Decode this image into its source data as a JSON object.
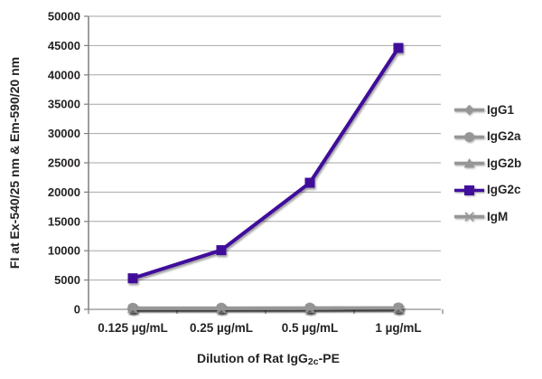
{
  "chart_data": {
    "type": "line",
    "title": "",
    "xlabel": "Dilution of Rat IgG2c-PE",
    "xlabel_parts": {
      "prefix": "Dilution of Rat IgG",
      "subscript": "2c",
      "suffix": "-PE"
    },
    "ylabel": "FI at Ex-540/25 nm & Em-590/20 nm",
    "categories": [
      "0.125 µg/mL",
      "0.25 µg/mL",
      "0.5 µg/mL",
      "1 µg/mL"
    ],
    "ylim": [
      0,
      50000
    ],
    "y_ticks": [
      0,
      5000,
      10000,
      15000,
      20000,
      25000,
      30000,
      35000,
      40000,
      45000,
      50000
    ],
    "grid": "horizontal",
    "legend_position": "right",
    "series": [
      {
        "name": "IgG1",
        "marker": "diamond",
        "color": "#969696",
        "values": [
          150,
          160,
          170,
          190
        ]
      },
      {
        "name": "IgG2a",
        "marker": "circle",
        "color": "#969696",
        "values": [
          230,
          240,
          260,
          280
        ]
      },
      {
        "name": "IgG2b",
        "marker": "triangle",
        "color": "#969696",
        "values": [
          180,
          190,
          200,
          220
        ]
      },
      {
        "name": "IgG2c",
        "marker": "square",
        "color": "#400f9b",
        "values": [
          5300,
          10100,
          21600,
          44600
        ]
      },
      {
        "name": "IgM",
        "marker": "asterisk",
        "color": "#969696",
        "values": [
          120,
          130,
          150,
          240
        ]
      }
    ]
  },
  "colors": {
    "background": "#ffffff",
    "gridline": "#a6a6a6",
    "baseline": "#8e8e8e",
    "axis": "#7f7f7f",
    "text": "#262324",
    "accent_purple": "#400f9b",
    "series_gray": "#969696"
  }
}
